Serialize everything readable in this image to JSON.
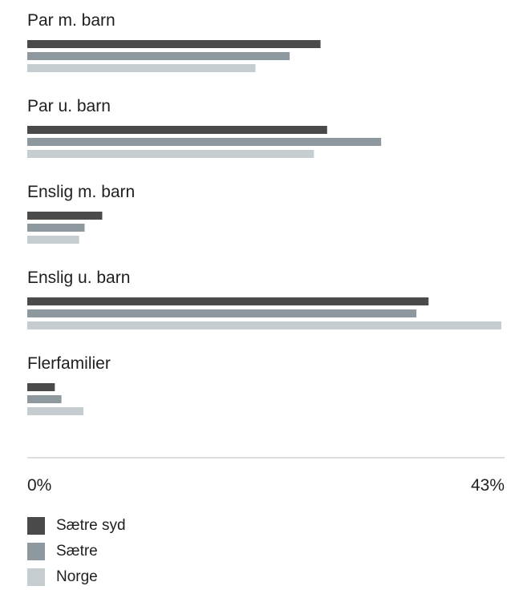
{
  "chart_data": {
    "type": "bar",
    "orientation": "horizontal",
    "categories": [
      "Par m. barn",
      "Par u. barn",
      "Enslig m. barn",
      "Enslig u. barn",
      "Flerfamilier"
    ],
    "series": [
      {
        "name": "Sætre syd",
        "color": "#4a4a4a",
        "values": [
          26.6,
          27.2,
          6.8,
          36.4,
          2.5
        ]
      },
      {
        "name": "Sætre",
        "color": "#8d999e",
        "values": [
          23.8,
          32.1,
          5.2,
          35.3,
          3.1
        ]
      },
      {
        "name": "Norge",
        "color": "#c5cdd1",
        "values": [
          20.7,
          26.0,
          4.7,
          43.0,
          5.1
        ]
      }
    ],
    "xlim": [
      0,
      43
    ],
    "tick_labels": [
      "0%",
      "43%"
    ],
    "legend_position": "bottom-left",
    "grid": false
  }
}
